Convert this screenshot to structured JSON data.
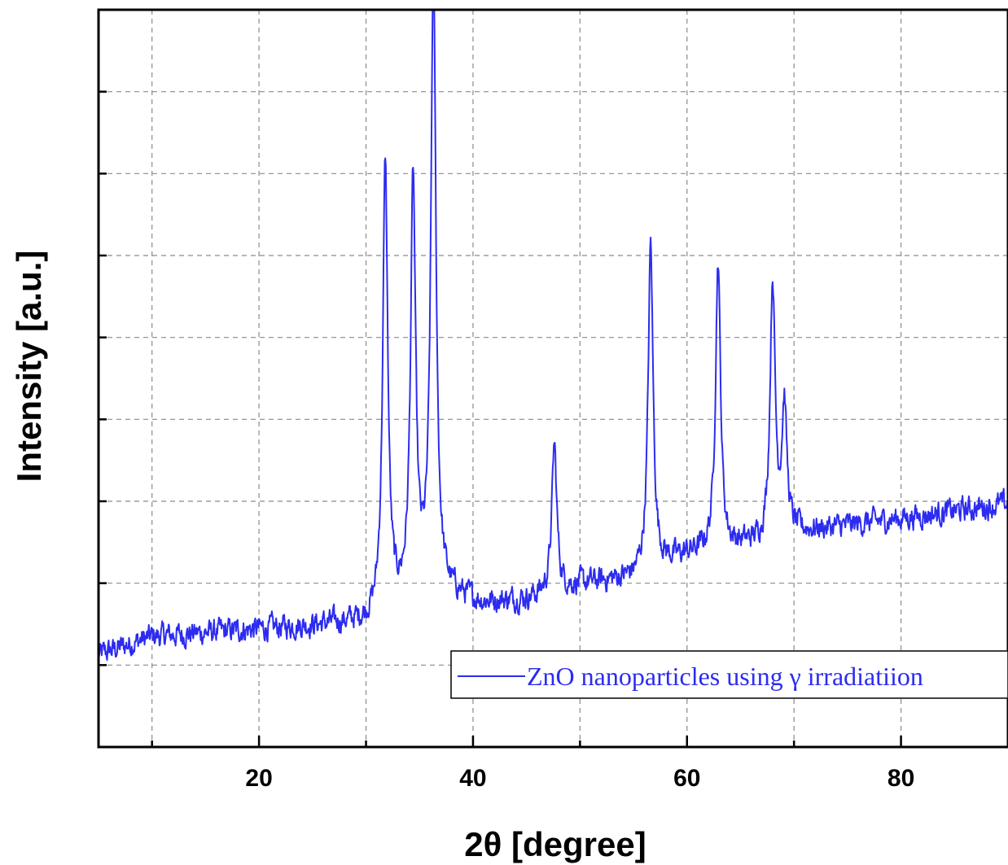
{
  "chart_data": {
    "type": "line",
    "title": "",
    "xlabel": "2θ [degree]",
    "ylabel": "Intensity [a.u.]",
    "xlim": [
      5,
      90
    ],
    "ylim": [
      0,
      100
    ],
    "x_ticks": [
      20,
      40,
      60,
      80
    ],
    "x_tick_labels": [
      "20",
      "40",
      "60",
      "80"
    ],
    "x_minor_ticks": [
      10,
      30,
      50,
      70
    ],
    "y_tick_labels_shown": false,
    "grid": true,
    "legend_position": "bottom-right",
    "series": [
      {
        "name": "ZnO nanoparticles using γ irradiatiion",
        "color": "#2c2cf0",
        "baseline": [
          [
            5,
            12.5
          ],
          [
            10,
            15
          ],
          [
            20,
            16
          ],
          [
            30,
            17
          ],
          [
            31,
            17.5
          ],
          [
            33,
            19
          ],
          [
            36,
            21
          ],
          [
            38,
            20.5
          ],
          [
            41,
            19.5
          ],
          [
            45,
            20
          ],
          [
            50,
            22
          ],
          [
            55,
            23
          ],
          [
            58,
            25
          ],
          [
            60,
            26
          ],
          [
            64,
            27
          ],
          [
            68,
            28
          ],
          [
            70,
            29
          ],
          [
            75,
            30
          ],
          [
            80,
            31
          ],
          [
            85,
            32
          ],
          [
            90,
            33
          ]
        ],
        "peaks": [
          {
            "x": 31.8,
            "height": 79,
            "label": ""
          },
          {
            "x": 34.4,
            "height": 76,
            "label": ""
          },
          {
            "x": 36.3,
            "height": 105,
            "label": ""
          },
          {
            "x": 47.6,
            "height": 41,
            "label": ""
          },
          {
            "x": 56.6,
            "height": 68,
            "label": ""
          },
          {
            "x": 62.9,
            "height": 66,
            "label": ""
          },
          {
            "x": 68.0,
            "height": 63,
            "label": ""
          },
          {
            "x": 69.1,
            "height": 46,
            "label": ""
          }
        ]
      }
    ]
  }
}
